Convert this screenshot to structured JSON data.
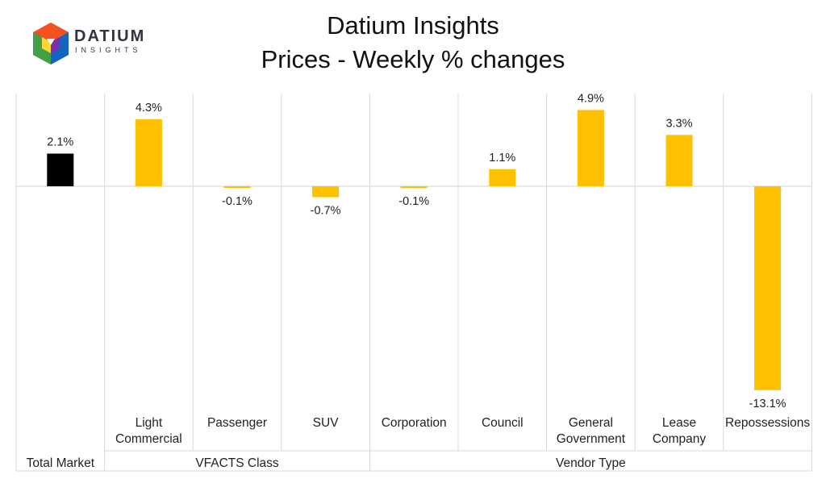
{
  "logo": {
    "word": "DATIUM",
    "sub": "INSIGHTS"
  },
  "chart_data": {
    "type": "bar",
    "title": "Datium Insights",
    "subtitle": "Prices - Weekly % changes",
    "categories": [
      "",
      "Light Commercial",
      "Passenger",
      "SUV",
      "Corporation",
      "Council",
      "General Government",
      "Lease Company",
      "Repossessions"
    ],
    "category_lines": [
      [],
      [
        "Light",
        "Commercial"
      ],
      [
        "Passenger"
      ],
      [
        "SUV"
      ],
      [
        "Corporation"
      ],
      [
        "Council"
      ],
      [
        "General",
        "Government"
      ],
      [
        "Lease",
        "Company"
      ],
      [
        "Repossessions"
      ]
    ],
    "values": [
      2.1,
      4.3,
      -0.1,
      -0.7,
      -0.1,
      1.1,
      4.9,
      3.3,
      -13.1
    ],
    "data_labels": [
      "2.1%",
      "4.3%",
      "-0.1%",
      "-0.7%",
      "-0.1%",
      "1.1%",
      "4.9%",
      "3.3%",
      "-13.1%"
    ],
    "groups": [
      {
        "label": "Total Market",
        "start": 0,
        "end": 0
      },
      {
        "label": "VFACTS Class",
        "start": 1,
        "end": 3
      },
      {
        "label": "Vendor Type",
        "start": 4,
        "end": 8
      }
    ],
    "ylim": [
      -13.5,
      6.0
    ],
    "colors": {
      "highlight": "#000000",
      "bar": "#FFC000",
      "grid": "#d9d9d9"
    },
    "highlight_index": 0
  }
}
